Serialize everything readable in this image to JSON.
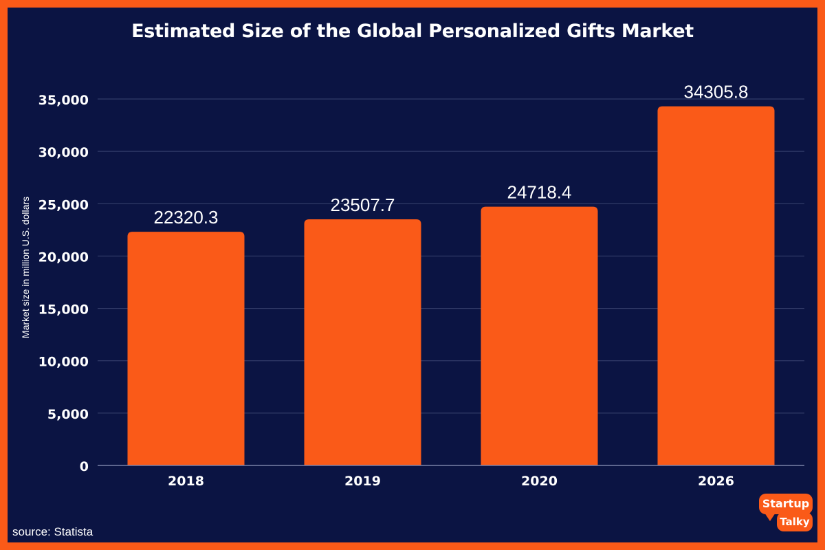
{
  "title": "Estimated Size of the Global Personalized Gifts Market",
  "source": "source: Statista",
  "logo": {
    "line1": "Startup",
    "line2": "Talky"
  },
  "colors": {
    "background": "#0b1443",
    "border": "#fa5a18",
    "bar": "#fa5a18",
    "grid": "#3a4370",
    "text": "#ffffff"
  },
  "chart_data": {
    "type": "bar",
    "title": "Estimated Size of the Global Personalized Gifts Market",
    "xlabel": "",
    "ylabel": "Market size in million U.S. dollars",
    "categories": [
      "2018",
      "2019",
      "2020",
      "2026"
    ],
    "values": [
      22320.3,
      23507.7,
      24718.4,
      34305.8
    ],
    "value_labels": [
      "22320.3",
      "23507.7",
      "24718.4",
      "34305.8"
    ],
    "ylim": [
      0,
      35000
    ],
    "yticks": [
      0,
      5000,
      10000,
      15000,
      20000,
      25000,
      30000,
      35000
    ],
    "ytick_labels": [
      "0",
      "5,000",
      "10,000",
      "15,000",
      "20,000",
      "25,000",
      "30,000",
      "35,000"
    ],
    "grid": true,
    "legend": "none"
  }
}
